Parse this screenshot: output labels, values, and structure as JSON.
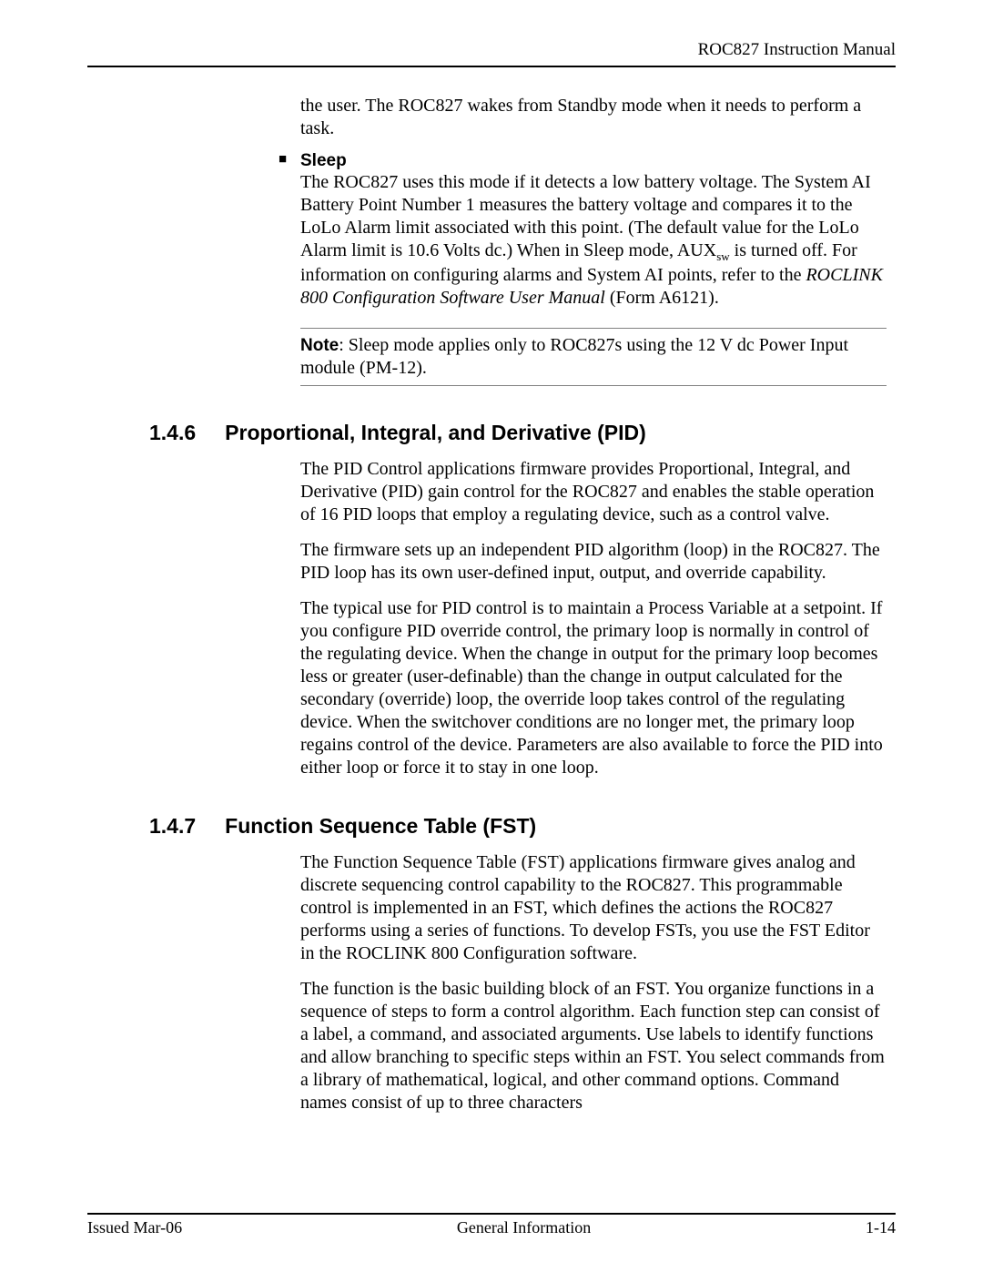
{
  "header": {
    "title": "ROC827 Instruction Manual"
  },
  "standby_trail": "the user. The ROC827 wakes from Standby mode when it needs to perform a task.",
  "sleep": {
    "title": "Sleep",
    "body_pre": "The ROC827 uses this mode if it detects a low battery voltage. The System AI Battery Point Number 1 measures the battery voltage and compares it to the LoLo Alarm limit associated with this point. (The default value for the LoLo Alarm limit is 10.6 Volts dc.) When in Sleep mode, AUX",
    "aux_sub": "sw",
    "body_mid": " is turned off. For information on configuring alarms and System AI points, refer to the ",
    "italic_ref": "ROCLINK 800 Configuration Software User Manual",
    "body_post": " (Form A6121)."
  },
  "note": {
    "label": "Note",
    "text": ": Sleep mode applies only to ROC827s using the 12 V dc Power Input module (PM-12)."
  },
  "sections": {
    "pid": {
      "num": "1.4.6",
      "title": "Proportional, Integral, and Derivative (PID)",
      "p1": "The PID Control applications firmware provides Proportional, Integral, and Derivative (PID) gain control for the ROC827 and enables the stable operation of 16 PID loops that employ a regulating device, such as a control valve.",
      "p2": "The firmware sets up an independent PID algorithm (loop) in the ROC827. The PID loop has its own user-defined input, output, and override capability.",
      "p3": "The typical use for PID control is to maintain a Process Variable at a setpoint. If you configure PID override control, the primary loop is normally in control of the regulating device. When the change in output for the primary loop becomes less or greater (user-definable) than the change in output calculated for the secondary (override) loop, the override loop takes control of the regulating device. When the switchover conditions are no longer met, the primary loop regains control of the device. Parameters are also available to force the PID into either loop or force it to stay in one loop."
    },
    "fst": {
      "num": "1.4.7",
      "title": "Function Sequence Table (FST)",
      "p1": "The Function Sequence Table (FST) applications firmware gives analog and discrete sequencing control capability to the ROC827. This programmable control is implemented in an FST, which defines the actions the ROC827 performs using a series of functions. To develop FSTs, you use the FST Editor in the ROCLINK 800 Configuration software.",
      "p2": "The function is the basic building block of an FST. You organize functions in a sequence of steps to form a control algorithm. Each function step can consist of a label, a command, and associated arguments. Use labels to identify functions and allow branching to specific steps within an FST. You select commands from a library of mathematical, logical, and other command options. Command names consist of up to three characters"
    }
  },
  "footer": {
    "left": "Issued Mar-06",
    "center": "General Information",
    "right": "1-14"
  },
  "colors": {
    "text": "#000000",
    "background": "#ffffff",
    "rule": "#000000",
    "note_border": "#808080"
  },
  "typography": {
    "body_font": "Times New Roman",
    "heading_font": "Arial",
    "body_size_pt": 15,
    "heading_size_pt": 17,
    "footer_size_pt": 13
  }
}
